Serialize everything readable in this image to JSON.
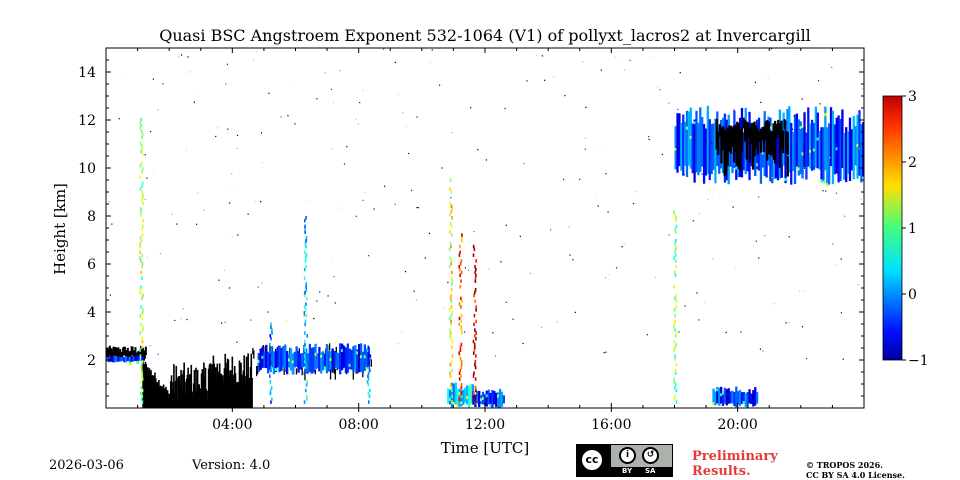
{
  "chart_data": {
    "type": "heatmap",
    "title": "Quasi BSC Angstroem Exponent 532-1064 (V1) of pollyxt_lacros2 at Invercargill",
    "xlabel": "Time [UTC]",
    "ylabel": "Height [km]",
    "xlim_hours": [
      0,
      24
    ],
    "ylim_km": [
      0,
      15
    ],
    "x_ticks": [
      {
        "hour": 4,
        "label": "04:00"
      },
      {
        "hour": 8,
        "label": "08:00"
      },
      {
        "hour": 12,
        "label": "12:00"
      },
      {
        "hour": 16,
        "label": "16:00"
      },
      {
        "hour": 20,
        "label": "20:00"
      }
    ],
    "y_ticks": [
      {
        "value": 2,
        "label": "2"
      },
      {
        "value": 4,
        "label": "4"
      },
      {
        "value": 6,
        "label": "6"
      },
      {
        "value": 8,
        "label": "8"
      },
      {
        "value": 10,
        "label": "10"
      },
      {
        "value": 12,
        "label": "12"
      },
      {
        "value": 14,
        "label": "14"
      }
    ],
    "colorbar": {
      "colormap": "jet",
      "min": -1,
      "max": 3,
      "ticks": [
        {
          "value": 3,
          "label": "3"
        },
        {
          "value": 2,
          "label": "2"
        },
        {
          "value": 1,
          "label": "1"
        },
        {
          "value": 0,
          "label": "0"
        },
        {
          "value": -1,
          "label": "−1"
        }
      ]
    },
    "no_signal_color": "#000000",
    "features": [
      {
        "name": "boundary-layer-morning",
        "t0": 0.0,
        "t1": 1.2,
        "h0": 1.9,
        "h1": 2.2,
        "value": -0.4
      },
      {
        "name": "low-layer-0530-0830",
        "t0": 4.8,
        "t1": 8.3,
        "h0": 1.4,
        "h1": 2.7,
        "value": -0.3
      },
      {
        "name": "fog-plumes-1100",
        "t0": 10.8,
        "t1": 11.6,
        "h0": 0.0,
        "h1": 1.1,
        "value": 0.4
      },
      {
        "name": "low-1200",
        "t0": 11.6,
        "t1": 12.6,
        "h0": 0.0,
        "h1": 0.8,
        "value": -0.3
      },
      {
        "name": "cirrus-evening",
        "t0": 18.0,
        "t1": 24.0,
        "h0": 9.3,
        "h1": 12.6,
        "value": -0.2
      },
      {
        "name": "low-clouds-1900",
        "t0": 19.2,
        "t1": 20.6,
        "h0": 0.0,
        "h1": 0.9,
        "value": -0.3
      }
    ]
  },
  "footer": {
    "date": "2026-03-06",
    "version": "Version: 4.0",
    "license_badge": {
      "by": "BY",
      "sa": "SA"
    },
    "preliminary": [
      "Preliminary",
      "Results."
    ],
    "copyright": [
      "© TROPOS 2026.",
      "CC BY SA 4.0 License."
    ]
  },
  "colors": {
    "axis": "#000000",
    "preliminary": "#e53a3a",
    "cc_badge_bg": "#aab2ab"
  }
}
